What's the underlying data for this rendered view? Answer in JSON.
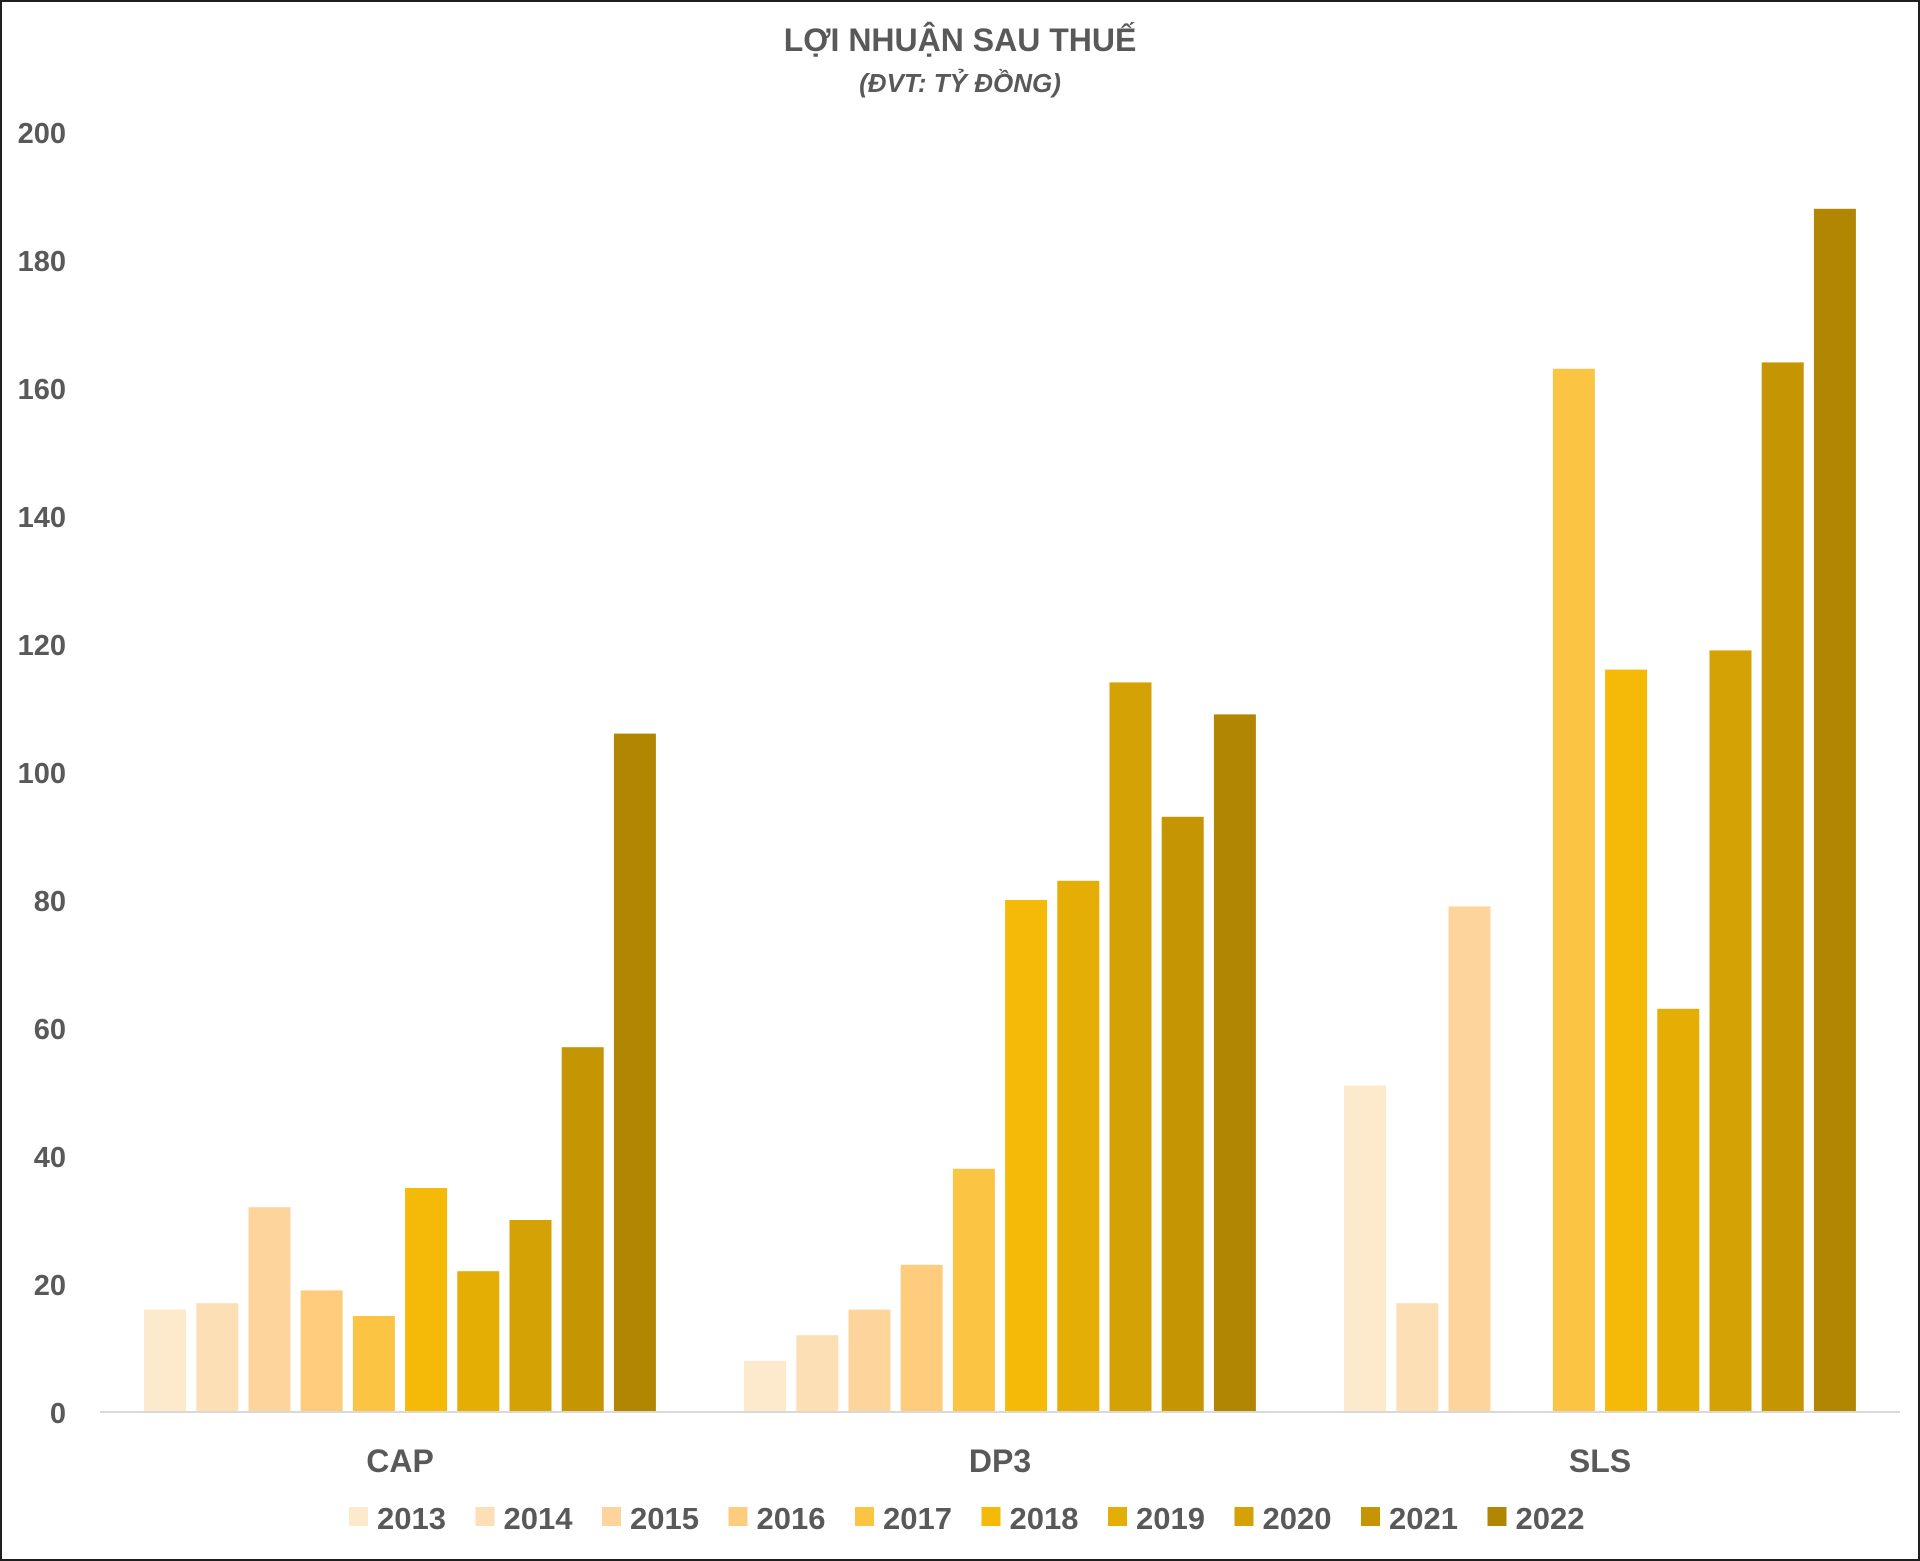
{
  "chart_data": {
    "type": "bar",
    "title": "LỢI NHUẬN SAU THUẾ",
    "subtitle": "(ĐVT: TỶ ĐỒNG)",
    "categories": [
      "CAP",
      "DP3",
      "SLS"
    ],
    "ylim": [
      0,
      200
    ],
    "yticks": [
      "0",
      "20",
      "40",
      "60",
      "80",
      "100",
      "120",
      "140",
      "160",
      "180",
      "200"
    ],
    "grid": false,
    "legend_position": "bottom",
    "series": [
      {
        "name": "2013",
        "color": "#FDE9CC",
        "values": [
          16,
          8,
          51
        ]
      },
      {
        "name": "2014",
        "color": "#FDDFB5",
        "values": [
          17,
          12,
          17
        ]
      },
      {
        "name": "2015",
        "color": "#FDD59C",
        "values": [
          32,
          16,
          79
        ]
      },
      {
        "name": "2016",
        "color": "#FDCC7D",
        "values": [
          19,
          23,
          null
        ]
      },
      {
        "name": "2017",
        "color": "#FCC443",
        "values": [
          15,
          38,
          163
        ]
      },
      {
        "name": "2018",
        "color": "#F5BA07",
        "values": [
          35,
          80,
          116
        ]
      },
      {
        "name": "2019",
        "color": "#E5AE05",
        "values": [
          22,
          83,
          63
        ]
      },
      {
        "name": "2020",
        "color": "#D4A204",
        "values": [
          30,
          114,
          119
        ]
      },
      {
        "name": "2021",
        "color": "#C59503",
        "values": [
          57,
          93,
          164
        ]
      },
      {
        "name": "2022",
        "color": "#B18603",
        "values": [
          106,
          109,
          188
        ]
      }
    ]
  }
}
